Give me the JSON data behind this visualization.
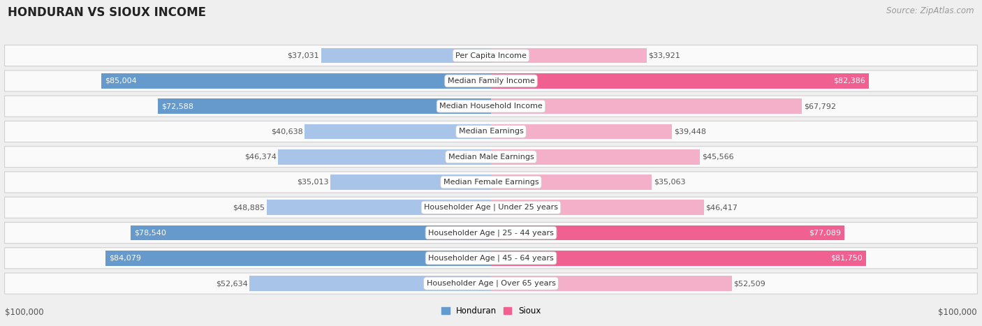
{
  "title": "HONDURAN VS SIOUX INCOME",
  "source": "Source: ZipAtlas.com",
  "categories": [
    "Per Capita Income",
    "Median Family Income",
    "Median Household Income",
    "Median Earnings",
    "Median Male Earnings",
    "Median Female Earnings",
    "Householder Age | Under 25 years",
    "Householder Age | 25 - 44 years",
    "Householder Age | 45 - 64 years",
    "Householder Age | Over 65 years"
  ],
  "honduran_values": [
    37031,
    85004,
    72588,
    40638,
    46374,
    35013,
    48885,
    78540,
    84079,
    52634
  ],
  "sioux_values": [
    33921,
    82386,
    67792,
    39448,
    45566,
    35063,
    46417,
    77089,
    81750,
    52509
  ],
  "honduran_color_light": "#a8c4e8",
  "honduran_color_dark": "#6699cc",
  "sioux_color_light": "#f4b0c8",
  "sioux_color_dark": "#f06090",
  "max_value": 100000,
  "background_color": "#efefef",
  "row_bg_color": "#fafafa",
  "row_alt_bg_color": "#f0f0f0",
  "label_bg_color": "#ffffff",
  "xlabel_left": "$100,000",
  "xlabel_right": "$100,000",
  "legend_honduran": "Honduran",
  "legend_sioux": "Sioux",
  "title_fontsize": 12,
  "source_fontsize": 8.5,
  "bar_label_fontsize": 8,
  "category_fontsize": 8,
  "axis_fontsize": 8.5,
  "threshold_dark": 70000
}
